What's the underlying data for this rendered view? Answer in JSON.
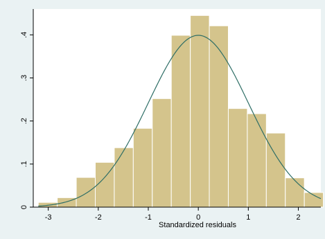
{
  "chart_data": {
    "type": "bar",
    "title": "",
    "xlabel": "Standardized residuals",
    "ylabel": "",
    "xlim": [
      -3.3,
      2.45
    ],
    "ylim": [
      0,
      0.46
    ],
    "xticks": [
      -3,
      -2,
      -1,
      0,
      1,
      2
    ],
    "xtick_labels": [
      "-3",
      "-2",
      "-1",
      "0",
      "1",
      "2"
    ],
    "yticks": [
      0,
      0.1,
      0.2,
      0.3,
      0.4
    ],
    "ytick_labels": [
      "0",
      ".1",
      ".2",
      ".3",
      ".4"
    ],
    "grid": false,
    "legend": false,
    "colors": {
      "background": "#eaf2f3",
      "plot_background": "#ffffff",
      "bar_fill": "#d4c48c",
      "bar_edge": "#ffffff",
      "curve": "#2e6e66"
    },
    "series": [
      {
        "type": "histogram",
        "bins": [
          {
            "x0": -3.2,
            "x1": -2.82,
            "density": 0.011
          },
          {
            "x0": -2.82,
            "x1": -2.44,
            "density": 0.022
          },
          {
            "x0": -2.44,
            "x1": -2.06,
            "density": 0.069
          },
          {
            "x0": -2.06,
            "x1": -1.68,
            "density": 0.104
          },
          {
            "x0": -1.68,
            "x1": -1.3,
            "density": 0.138
          },
          {
            "x0": -1.3,
            "x1": -0.92,
            "density": 0.183
          },
          {
            "x0": -0.92,
            "x1": -0.54,
            "density": 0.252
          },
          {
            "x0": -0.54,
            "x1": -0.16,
            "density": 0.399
          },
          {
            "x0": -0.16,
            "x1": 0.22,
            "density": 0.445
          },
          {
            "x0": 0.22,
            "x1": 0.6,
            "density": 0.421
          },
          {
            "x0": 0.6,
            "x1": 0.98,
            "density": 0.229
          },
          {
            "x0": 0.98,
            "x1": 1.36,
            "density": 0.217
          },
          {
            "x0": 1.36,
            "x1": 1.74,
            "density": 0.172
          },
          {
            "x0": 1.74,
            "x1": 2.12,
            "density": 0.068
          },
          {
            "x0": 2.12,
            "x1": 2.5,
            "density": 0.034
          }
        ]
      },
      {
        "type": "line",
        "function": "normal_density",
        "mean": 0,
        "sd": 1,
        "x_range": [
          -3.2,
          2.45
        ]
      }
    ]
  }
}
